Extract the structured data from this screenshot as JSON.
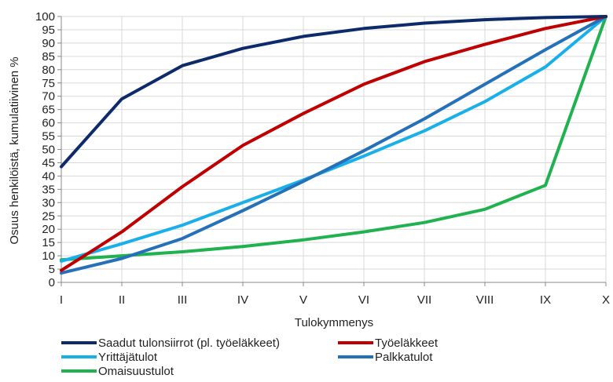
{
  "chart_data": {
    "type": "line",
    "title": "",
    "xlabel": "Tulokymmenys",
    "ylabel": "Osuus henkilöistä, kumulatiivinen %",
    "categories": [
      "I",
      "II",
      "III",
      "IV",
      "V",
      "VI",
      "VII",
      "VIII",
      "IX",
      "X"
    ],
    "yticks": [
      "0",
      "5",
      "10",
      "15",
      "20",
      "25",
      "30",
      "35",
      "40",
      "45",
      "50",
      "55",
      "60",
      "65",
      "70",
      "75",
      "80",
      "85",
      "90",
      "95",
      "100"
    ],
    "ylim": [
      0,
      100
    ],
    "grid": "horizontal and vertical",
    "legend_position": "bottom",
    "series": [
      {
        "name": "Saadut tulonsiirrot (pl. työeläkkeet)",
        "color": "#0d2a6b",
        "values": [
          43.5,
          69,
          81.5,
          88,
          92.5,
          95.5,
          97.5,
          98.8,
          99.6,
          100
        ]
      },
      {
        "name": "Työeläkkeet",
        "color": "#c00000",
        "values": [
          4.5,
          19,
          36,
          51.5,
          63.5,
          74.5,
          83,
          89.5,
          95.5,
          100
        ]
      },
      {
        "name": "Yrittäjätulot",
        "color": "#19b0ea",
        "values": [
          8,
          14.5,
          21.5,
          30,
          38.5,
          47.5,
          57,
          68,
          81,
          100
        ]
      },
      {
        "name": "Palkkatulot",
        "color": "#2471b9",
        "values": [
          3.5,
          9,
          16.5,
          27,
          38,
          49.5,
          61.5,
          74.5,
          87.5,
          100
        ]
      },
      {
        "name": "Omaisuustulot",
        "color": "#20b24f",
        "values": [
          8.5,
          10,
          11.5,
          13.5,
          16,
          19,
          22.5,
          27.5,
          36.5,
          100
        ]
      }
    ]
  }
}
